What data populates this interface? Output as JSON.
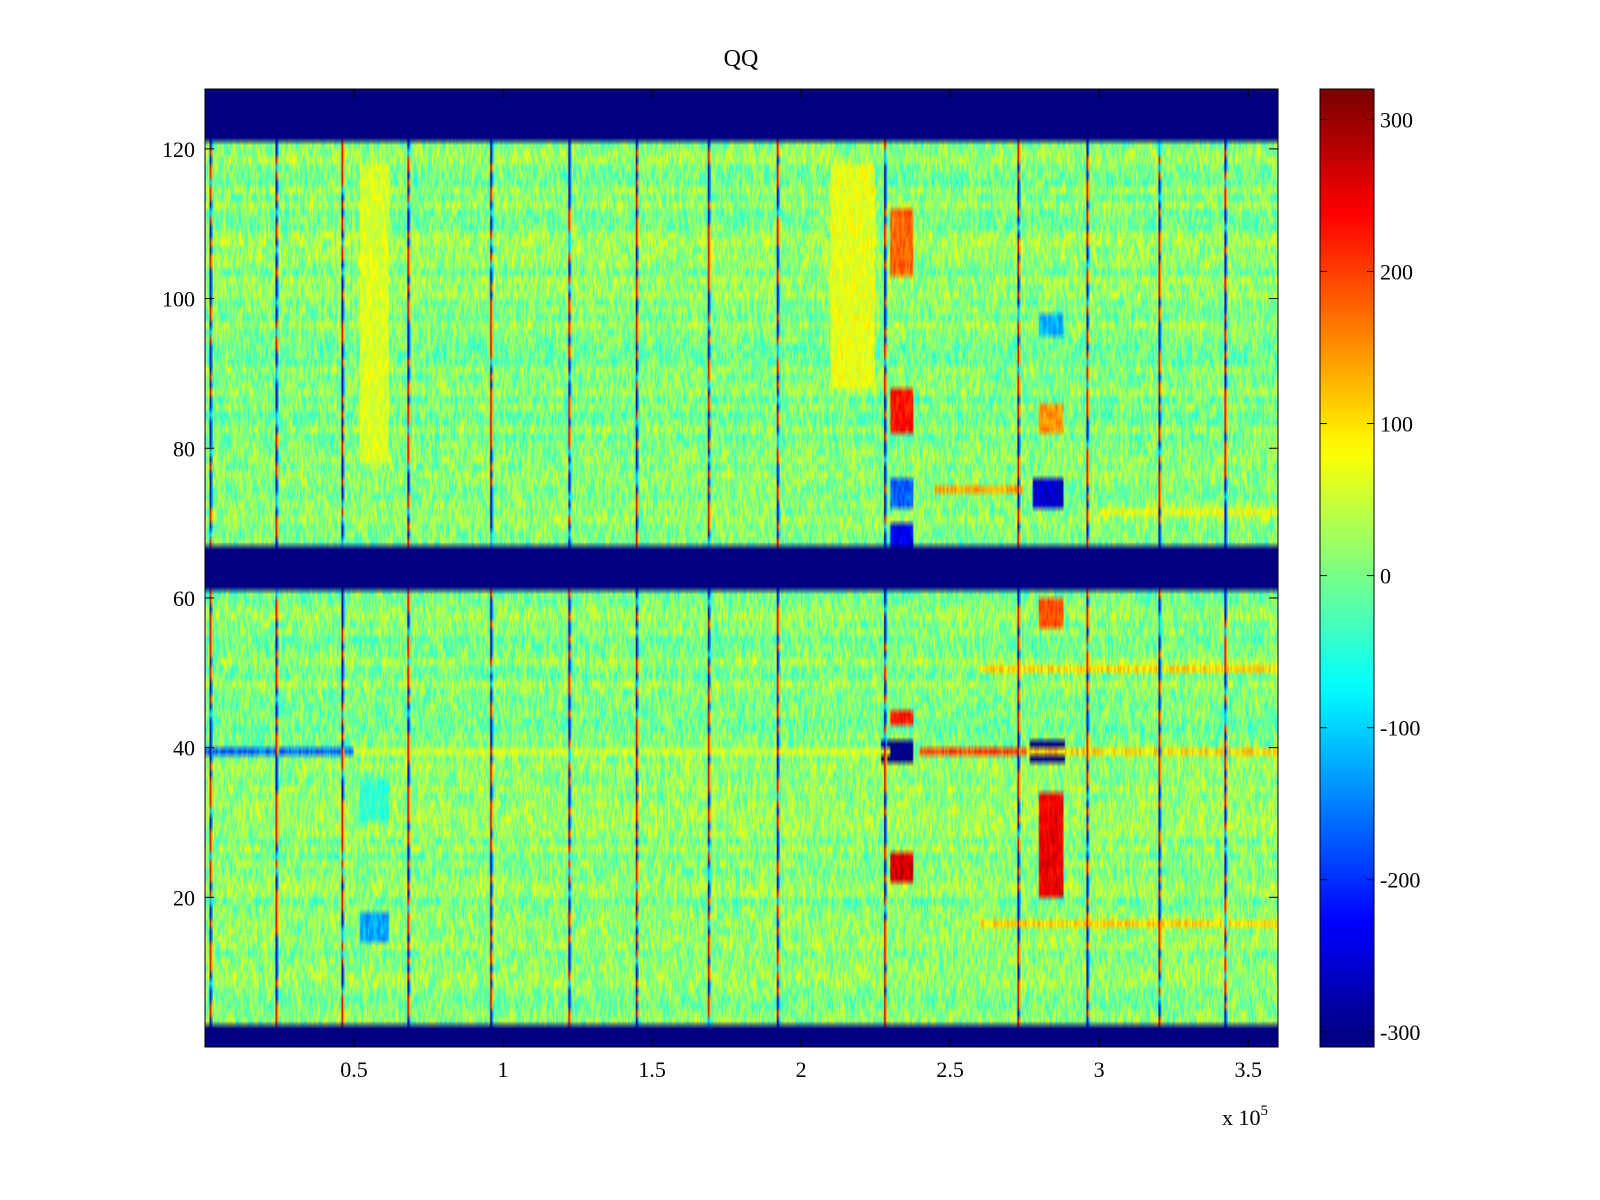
{
  "chart_data": {
    "type": "heatmap",
    "title": "QQ",
    "xlabel": "",
    "ylabel": "",
    "x_exponent_label": "x 10",
    "x_exponent_power": "5",
    "xlim": [
      0,
      3.6
    ],
    "ylim": [
      0,
      128
    ],
    "grid": false,
    "x_ticks": [
      {
        "value": 0.5,
        "label": "0.5"
      },
      {
        "value": 1,
        "label": "1"
      },
      {
        "value": 1.5,
        "label": "1.5"
      },
      {
        "value": 2,
        "label": "2"
      },
      {
        "value": 2.5,
        "label": "2.5"
      },
      {
        "value": 3,
        "label": "3"
      },
      {
        "value": 3.5,
        "label": "3.5"
      }
    ],
    "y_ticks": [
      {
        "value": 20,
        "label": "20"
      },
      {
        "value": 40,
        "label": "40"
      },
      {
        "value": 60,
        "label": "60"
      },
      {
        "value": 80,
        "label": "80"
      },
      {
        "value": 100,
        "label": "100"
      },
      {
        "value": 120,
        "label": "120"
      }
    ],
    "colorbar": {
      "colormap": "jet",
      "range": [
        -310,
        320
      ],
      "ticks": [
        {
          "value": 300,
          "label": "300"
        },
        {
          "value": 200,
          "label": "200"
        },
        {
          "value": 100,
          "label": "100"
        },
        {
          "value": 0,
          "label": "0"
        },
        {
          "value": -100,
          "label": "-100"
        },
        {
          "value": -200,
          "label": "-200"
        },
        {
          "value": -300,
          "label": "-300"
        }
      ]
    },
    "background_value": 10,
    "blank_bands_y": [
      [
        0,
        3
      ],
      [
        61,
        67
      ],
      [
        121,
        128
      ]
    ],
    "vertical_lines_x": [
      0.02,
      0.24,
      0.46,
      0.68,
      0.96,
      1.22,
      1.45,
      1.69,
      1.92,
      2.28,
      2.73,
      2.96,
      3.2,
      3.42
    ],
    "horizontal_stripes": [
      {
        "y": 39,
        "x_range": [
          0.0,
          0.5
        ],
        "value": -170
      },
      {
        "y": 39,
        "x_range": [
          0.5,
          2.3
        ],
        "value": 60
      },
      {
        "y": 39,
        "x_range": [
          2.4,
          2.76
        ],
        "value": 200
      },
      {
        "y": 39,
        "x_range": [
          2.76,
          3.6
        ],
        "value": 110
      },
      {
        "y": 50,
        "x_range": [
          2.6,
          3.6
        ],
        "value": 110
      },
      {
        "y": 16,
        "x_range": [
          2.6,
          3.6
        ],
        "value": 110
      },
      {
        "y": 74,
        "x_range": [
          2.45,
          2.75
        ],
        "value": 140
      },
      {
        "y": 71,
        "x_range": [
          3.0,
          3.6
        ],
        "value": 80
      }
    ],
    "hotspots": [
      {
        "x_range": [
          2.3,
          2.38
        ],
        "y_range": [
          103,
          112
        ],
        "value": 180
      },
      {
        "x_range": [
          2.3,
          2.38
        ],
        "y_range": [
          82,
          88
        ],
        "value": 230
      },
      {
        "x_range": [
          2.3,
          2.38
        ],
        "y_range": [
          22,
          26
        ],
        "value": 270
      },
      {
        "x_range": [
          2.3,
          2.38
        ],
        "y_range": [
          43,
          45
        ],
        "value": 230
      },
      {
        "x_range": [
          2.8,
          2.88
        ],
        "y_range": [
          20,
          34
        ],
        "value": 250
      },
      {
        "x_range": [
          2.8,
          2.88
        ],
        "y_range": [
          56,
          60
        ],
        "value": 200
      },
      {
        "x_range": [
          2.8,
          2.88
        ],
        "y_range": [
          82,
          86
        ],
        "value": 150
      },
      {
        "x_range": [
          2.3,
          2.38
        ],
        "y_range": [
          67,
          70
        ],
        "value": -240
      },
      {
        "x_range": [
          2.3,
          2.38
        ],
        "y_range": [
          72,
          76
        ],
        "value": -170
      },
      {
        "x_range": [
          2.78,
          2.88
        ],
        "y_range": [
          72,
          76
        ],
        "value": -260
      },
      {
        "x_range": [
          2.8,
          2.88
        ],
        "y_range": [
          95,
          98
        ],
        "value": -120
      },
      {
        "x_range": [
          2.27,
          2.38
        ],
        "y_range": [
          38,
          41
        ],
        "value": -310
      },
      {
        "x_range": [
          2.77,
          2.89
        ],
        "y_range": [
          38,
          41
        ],
        "value": -310
      },
      {
        "x_range": [
          0.52,
          0.62
        ],
        "y_range": [
          14,
          18
        ],
        "value": -130
      },
      {
        "x_range": [
          0.52,
          0.62
        ],
        "y_range": [
          30,
          36
        ],
        "value": -40
      },
      {
        "x_range": [
          0.52,
          0.62
        ],
        "y_range": [
          78,
          118
        ],
        "value": 60
      },
      {
        "x_range": [
          2.1,
          2.25
        ],
        "y_range": [
          88,
          118
        ],
        "value": 70
      }
    ]
  }
}
